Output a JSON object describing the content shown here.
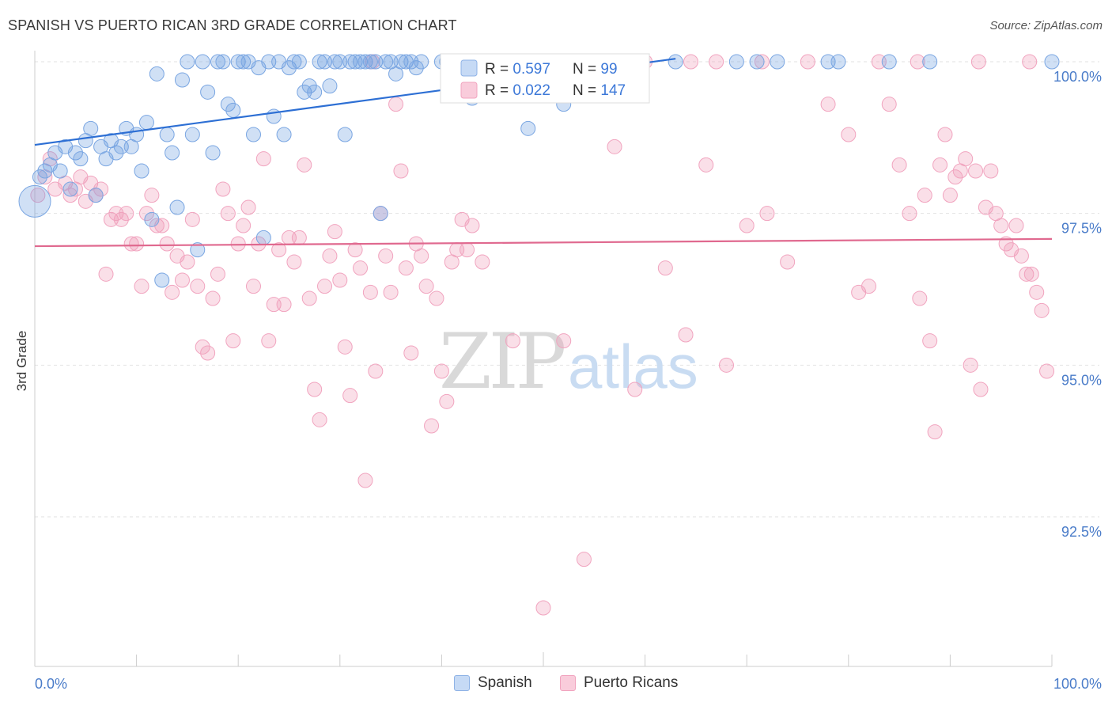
{
  "title": "SPANISH VS PUERTO RICAN 3RD GRADE CORRELATION CHART",
  "source": "Source: ZipAtlas.com",
  "colors": {
    "blue": "#6e9ee0",
    "blue_line": "#2d6fd4",
    "pink": "#f19ab8",
    "pink_line": "#e0698f",
    "tick_label": "#4a7cc9"
  },
  "chart_data": {
    "type": "scatter",
    "title": "SPANISH VS PUERTO RICAN 3RD GRADE CORRELATION CHART",
    "xlabel": "",
    "ylabel": "3rd Grade",
    "xlim": [
      0,
      100
    ],
    "ylim": [
      90.0,
      100.4
    ],
    "x_ticks": [
      "0.0%",
      "100.0%"
    ],
    "y_ticks": [
      {
        "value": 100.0,
        "label": "100.0%"
      },
      {
        "value": 97.5,
        "label": "97.5%"
      },
      {
        "value": 95.0,
        "label": "95.0%"
      },
      {
        "value": 92.5,
        "label": "92.5%"
      }
    ],
    "legend": {
      "position": "top-center",
      "rows": [
        {
          "r_label": "R = ",
          "r_value": "0.597",
          "n_label": "N = ",
          "n_value": "99"
        },
        {
          "r_label": "R = ",
          "r_value": "0.022",
          "n_label": "N = ",
          "n_value": "147"
        }
      ]
    },
    "series": [
      {
        "name": "Spanish",
        "trend": {
          "x": [
            0,
            63
          ],
          "y": [
            98.63,
            100.05
          ]
        },
        "points": [
          [
            0,
            97.7
          ],
          [
            0.5,
            98.1
          ],
          [
            1,
            98.2
          ],
          [
            1.5,
            98.3
          ],
          [
            2,
            98.5
          ],
          [
            2.5,
            98.2
          ],
          [
            3,
            98.6
          ],
          [
            3.5,
            97.9
          ],
          [
            4,
            98.5
          ],
          [
            4.5,
            98.4
          ],
          [
            5,
            98.7
          ],
          [
            5.5,
            98.9
          ],
          [
            6,
            97.8
          ],
          [
            6.5,
            98.6
          ],
          [
            7,
            98.4
          ],
          [
            7.5,
            98.7
          ],
          [
            8,
            98.5
          ],
          [
            8.5,
            98.6
          ],
          [
            9,
            98.9
          ],
          [
            9.5,
            98.6
          ],
          [
            10,
            98.8
          ],
          [
            10.5,
            98.2
          ],
          [
            11,
            99.0
          ],
          [
            11.5,
            97.4
          ],
          [
            12,
            99.8
          ],
          [
            12.5,
            96.4
          ],
          [
            13,
            98.8
          ],
          [
            13.5,
            98.5
          ],
          [
            14,
            97.6
          ],
          [
            14.5,
            99.7
          ],
          [
            15,
            100
          ],
          [
            15.5,
            98.8
          ],
          [
            16,
            96.9
          ],
          [
            16.5,
            100
          ],
          [
            17,
            99.5
          ],
          [
            17.5,
            98.5
          ],
          [
            18,
            100
          ],
          [
            18.5,
            100
          ],
          [
            19,
            99.3
          ],
          [
            19.5,
            99.2
          ],
          [
            20,
            100
          ],
          [
            20.5,
            100
          ],
          [
            21,
            100
          ],
          [
            21.5,
            98.8
          ],
          [
            22,
            99.9
          ],
          [
            22.5,
            97.1
          ],
          [
            23,
            100
          ],
          [
            23.5,
            99.1
          ],
          [
            24,
            100
          ],
          [
            24.5,
            98.8
          ],
          [
            25,
            99.9
          ],
          [
            25.5,
            100
          ],
          [
            26,
            100
          ],
          [
            26.5,
            99.5
          ],
          [
            27,
            99.6
          ],
          [
            27.5,
            99.5
          ],
          [
            28,
            100
          ],
          [
            28.5,
            100
          ],
          [
            29,
            99.6
          ],
          [
            29.5,
            100
          ],
          [
            30,
            100
          ],
          [
            30.5,
            98.8
          ],
          [
            31,
            100
          ],
          [
            31.5,
            100
          ],
          [
            32,
            100
          ],
          [
            32.5,
            100
          ],
          [
            33,
            100
          ],
          [
            33.5,
            100
          ],
          [
            34,
            97.5
          ],
          [
            34.5,
            100
          ],
          [
            35,
            100
          ],
          [
            35.5,
            99.8
          ],
          [
            36,
            100
          ],
          [
            36.5,
            100
          ],
          [
            37,
            100
          ],
          [
            37.5,
            99.9
          ],
          [
            38,
            100
          ],
          [
            40,
            100
          ],
          [
            40.5,
            100
          ],
          [
            42,
            100
          ],
          [
            43,
            99.4
          ],
          [
            44,
            100
          ],
          [
            46,
            100
          ],
          [
            47,
            100
          ],
          [
            48,
            100
          ],
          [
            48.5,
            98.9
          ],
          [
            50,
            100
          ],
          [
            52,
            99.3
          ],
          [
            55,
            100
          ],
          [
            59,
            100
          ],
          [
            63,
            100
          ],
          [
            69,
            100
          ],
          [
            71,
            100
          ],
          [
            73,
            100
          ],
          [
            78,
            100
          ],
          [
            79,
            100
          ],
          [
            84,
            100
          ],
          [
            88,
            100
          ],
          [
            100,
            100
          ]
        ]
      },
      {
        "name": "Puerto Ricans",
        "trend": {
          "x": [
            0,
            100
          ],
          "y": [
            96.96,
            97.08
          ]
        },
        "points": [
          [
            0.3,
            97.8
          ],
          [
            1,
            98.1
          ],
          [
            1.5,
            98.4
          ],
          [
            2,
            97.9
          ],
          [
            3,
            98.0
          ],
          [
            3.5,
            97.8
          ],
          [
            4,
            97.9
          ],
          [
            4.5,
            98.1
          ],
          [
            5,
            97.7
          ],
          [
            5.5,
            98.0
          ],
          [
            6,
            97.8
          ],
          [
            6.5,
            97.9
          ],
          [
            7,
            96.5
          ],
          [
            7.5,
            97.4
          ],
          [
            8,
            97.5
          ],
          [
            8.5,
            97.4
          ],
          [
            9,
            97.5
          ],
          [
            9.5,
            97.0
          ],
          [
            10,
            97.0
          ],
          [
            10.5,
            96.3
          ],
          [
            11,
            97.5
          ],
          [
            11.5,
            97.8
          ],
          [
            12,
            97.3
          ],
          [
            12.5,
            97.3
          ],
          [
            13,
            97.0
          ],
          [
            13.5,
            96.2
          ],
          [
            14,
            96.8
          ],
          [
            14.5,
            96.4
          ],
          [
            15,
            96.7
          ],
          [
            15.5,
            97.4
          ],
          [
            16,
            96.3
          ],
          [
            16.5,
            95.3
          ],
          [
            17,
            95.2
          ],
          [
            17.5,
            96.1
          ],
          [
            18,
            96.5
          ],
          [
            18.5,
            97.9
          ],
          [
            19,
            97.5
          ],
          [
            19.5,
            95.4
          ],
          [
            20,
            97.0
          ],
          [
            20.5,
            97.3
          ],
          [
            21,
            97.6
          ],
          [
            21.5,
            96.3
          ],
          [
            22,
            97.0
          ],
          [
            22.5,
            98.4
          ],
          [
            23,
            95.4
          ],
          [
            23.5,
            96.0
          ],
          [
            24,
            96.9
          ],
          [
            24.5,
            96.0
          ],
          [
            25,
            97.1
          ],
          [
            25.5,
            96.7
          ],
          [
            26,
            97.1
          ],
          [
            26.5,
            98.3
          ],
          [
            27,
            96.1
          ],
          [
            27.5,
            94.6
          ],
          [
            28,
            94.1
          ],
          [
            28.5,
            96.3
          ],
          [
            29,
            96.8
          ],
          [
            29.5,
            97.2
          ],
          [
            30,
            96.4
          ],
          [
            30.5,
            95.3
          ],
          [
            31,
            94.5
          ],
          [
            31.5,
            96.9
          ],
          [
            32,
            96.6
          ],
          [
            32.5,
            93.1
          ],
          [
            33,
            96.2
          ],
          [
            33.5,
            94.9
          ],
          [
            34,
            97.5
          ],
          [
            34.5,
            96.8
          ],
          [
            35,
            96.2
          ],
          [
            35.5,
            99.3
          ],
          [
            36,
            98.2
          ],
          [
            36.5,
            96.6
          ],
          [
            37,
            95.2
          ],
          [
            37.5,
            97.0
          ],
          [
            38,
            96.8
          ],
          [
            38.5,
            96.3
          ],
          [
            39,
            94.0
          ],
          [
            39.5,
            96.1
          ],
          [
            40,
            94.9
          ],
          [
            40.5,
            94.4
          ],
          [
            41,
            96.7
          ],
          [
            41.5,
            96.9
          ],
          [
            42,
            97.4
          ],
          [
            42.5,
            96.9
          ],
          [
            43,
            97.3
          ],
          [
            44,
            96.7
          ],
          [
            45,
            100
          ],
          [
            47,
            95.4
          ],
          [
            48,
            100
          ],
          [
            50,
            91.0
          ],
          [
            51,
            100
          ],
          [
            52,
            95.4
          ],
          [
            54,
            91.8
          ],
          [
            56,
            100
          ],
          [
            57,
            98.6
          ],
          [
            59,
            94.6
          ],
          [
            60,
            100
          ],
          [
            62,
            96.6
          ],
          [
            64,
            95.5
          ],
          [
            66,
            98.3
          ],
          [
            67,
            100
          ],
          [
            68,
            95.0
          ],
          [
            70,
            97.3
          ],
          [
            72,
            97.5
          ],
          [
            74,
            96.7
          ],
          [
            76,
            100
          ],
          [
            78,
            99.3
          ],
          [
            80,
            98.8
          ],
          [
            81,
            96.2
          ],
          [
            82,
            96.3
          ],
          [
            83,
            100
          ],
          [
            84,
            99.3
          ],
          [
            85,
            98.3
          ],
          [
            86,
            97.5
          ],
          [
            87,
            96.1
          ],
          [
            87.5,
            97.8
          ],
          [
            88,
            95.4
          ],
          [
            88.5,
            93.9
          ],
          [
            89,
            98.3
          ],
          [
            89.5,
            98.8
          ],
          [
            90,
            97.8
          ],
          [
            90.5,
            98.1
          ],
          [
            91,
            98.2
          ],
          [
            91.5,
            98.4
          ],
          [
            92,
            95.0
          ],
          [
            92.5,
            98.2
          ],
          [
            93,
            94.6
          ],
          [
            93.5,
            97.6
          ],
          [
            94,
            98.2
          ],
          [
            94.5,
            97.5
          ],
          [
            95,
            97.3
          ],
          [
            95.5,
            97.0
          ],
          [
            96,
            96.9
          ],
          [
            96.5,
            97.3
          ],
          [
            97,
            96.8
          ],
          [
            97.5,
            96.5
          ],
          [
            98,
            96.5
          ],
          [
            98.5,
            96.2
          ],
          [
            99,
            95.9
          ],
          [
            99.5,
            94.9
          ],
          [
            33.2,
            100
          ],
          [
            53,
            100
          ],
          [
            64.5,
            100
          ],
          [
            71.5,
            100
          ],
          [
            86.8,
            100
          ],
          [
            92.8,
            100
          ],
          [
            97.8,
            100
          ]
        ]
      }
    ],
    "watermark": "ZIPatlas"
  }
}
